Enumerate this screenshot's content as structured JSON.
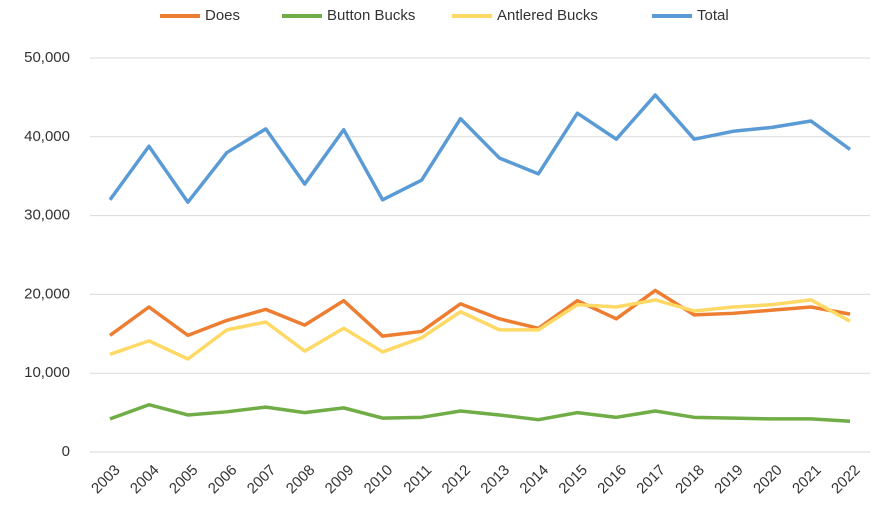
{
  "chart_data": {
    "type": "line",
    "categories": [
      "2003",
      "2004",
      "2005",
      "2006",
      "2007",
      "2008",
      "2009",
      "2010",
      "2011",
      "2012",
      "2013",
      "2014",
      "2015",
      "2016",
      "2017",
      "2018",
      "2019",
      "2020",
      "2021",
      "2022"
    ],
    "series": [
      {
        "name": "Does",
        "color": "#ed7d31",
        "values": [
          14800,
          18400,
          14800,
          16700,
          18100,
          16100,
          19200,
          14700,
          15300,
          18800,
          16900,
          15700,
          19200,
          16900,
          20500,
          17400,
          17600,
          18000,
          18400,
          17500
        ]
      },
      {
        "name": "Button Bucks",
        "color": "#70ad47",
        "values": [
          4200,
          6000,
          4700,
          5100,
          5700,
          5000,
          5600,
          4300,
          4400,
          5200,
          4700,
          4100,
          5000,
          4400,
          5200,
          4400,
          4300,
          4200,
          4200,
          3900
        ]
      },
      {
        "name": "Antlered Bucks",
        "color": "#ffd966",
        "values": [
          12400,
          14100,
          11800,
          15500,
          16500,
          12800,
          15700,
          12700,
          14500,
          17800,
          15500,
          15500,
          18700,
          18400,
          19300,
          17900,
          18400,
          18700,
          19300,
          16600
        ]
      },
      {
        "name": "Total",
        "color": "#5b9bd5",
        "values": [
          32000,
          38800,
          31700,
          38000,
          41000,
          34000,
          40900,
          32000,
          34500,
          42300,
          37300,
          35300,
          43000,
          39700,
          45300,
          39700,
          40700,
          41200,
          42000,
          38400
        ]
      }
    ],
    "ylim": [
      0,
      50000
    ],
    "yticks": [
      0,
      {
        "value": 10000,
        "label": "10,000"
      },
      {
        "value": 20000,
        "label": "20,000"
      },
      {
        "value": 30000,
        "label": "30,000"
      },
      {
        "value": 40000,
        "label": "40,000"
      },
      {
        "value": 50000,
        "label": "50,000"
      }
    ],
    "grid": true,
    "legend": "top"
  }
}
